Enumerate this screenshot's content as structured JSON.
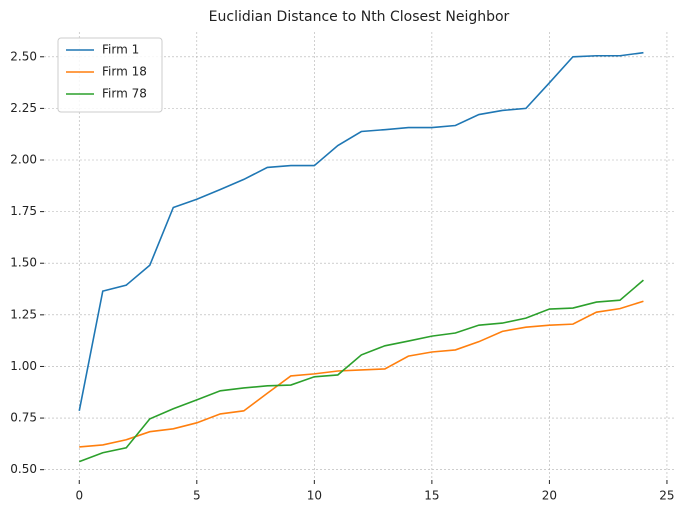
{
  "chart_data": {
    "type": "line",
    "title": "Euclidian Distance to Nth Closest Neighbor",
    "x": [
      0,
      1,
      2,
      3,
      4,
      5,
      6,
      7,
      8,
      9,
      10,
      11,
      12,
      13,
      14,
      15,
      16,
      17,
      18,
      19,
      20,
      21,
      22,
      23,
      24
    ],
    "series": [
      {
        "name": "Firm 1",
        "color": "#1f77b4",
        "values": [
          0.785,
          1.365,
          1.394,
          1.49,
          1.77,
          1.81,
          1.857,
          1.906,
          1.964,
          1.973,
          1.973,
          2.07,
          2.138,
          2.147,
          2.157,
          2.157,
          2.167,
          2.22,
          2.24,
          2.25,
          2.374,
          2.5,
          2.505,
          2.505,
          2.52
        ]
      },
      {
        "name": "Firm 18",
        "color": "#ff7f0e",
        "values": [
          0.61,
          0.62,
          0.645,
          0.684,
          0.698,
          0.727,
          0.77,
          0.785,
          0.87,
          0.954,
          0.964,
          0.978,
          0.983,
          0.988,
          1.05,
          1.07,
          1.08,
          1.12,
          1.17,
          1.19,
          1.2,
          1.205,
          1.263,
          1.28,
          1.316
        ]
      },
      {
        "name": "Firm 78",
        "color": "#2ca02c",
        "values": [
          0.539,
          0.582,
          0.606,
          0.746,
          0.795,
          0.838,
          0.882,
          0.896,
          0.906,
          0.91,
          0.95,
          0.959,
          1.056,
          1.1,
          1.123,
          1.147,
          1.162,
          1.2,
          1.21,
          1.234,
          1.278,
          1.283,
          1.312,
          1.321,
          1.418
        ]
      }
    ],
    "xlim": [
      -1.5,
      25.3
    ],
    "xticks": [
      0,
      5,
      10,
      15,
      20,
      25
    ],
    "ylim": [
      0.45,
      2.62
    ],
    "yticks": [
      {
        "value": 0.5,
        "label": "0.50"
      },
      {
        "value": 0.75,
        "label": "0.75"
      },
      {
        "value": 1.0,
        "label": "1.00"
      },
      {
        "value": 1.25,
        "label": "1.25"
      },
      {
        "value": 1.5,
        "label": "1.50"
      },
      {
        "value": 1.75,
        "label": "1.75"
      },
      {
        "value": 2.0,
        "label": "2.00"
      },
      {
        "value": 2.25,
        "label": "2.25"
      },
      {
        "value": 2.5,
        "label": "2.50"
      }
    ],
    "grid": true,
    "legend": "upper-left"
  }
}
